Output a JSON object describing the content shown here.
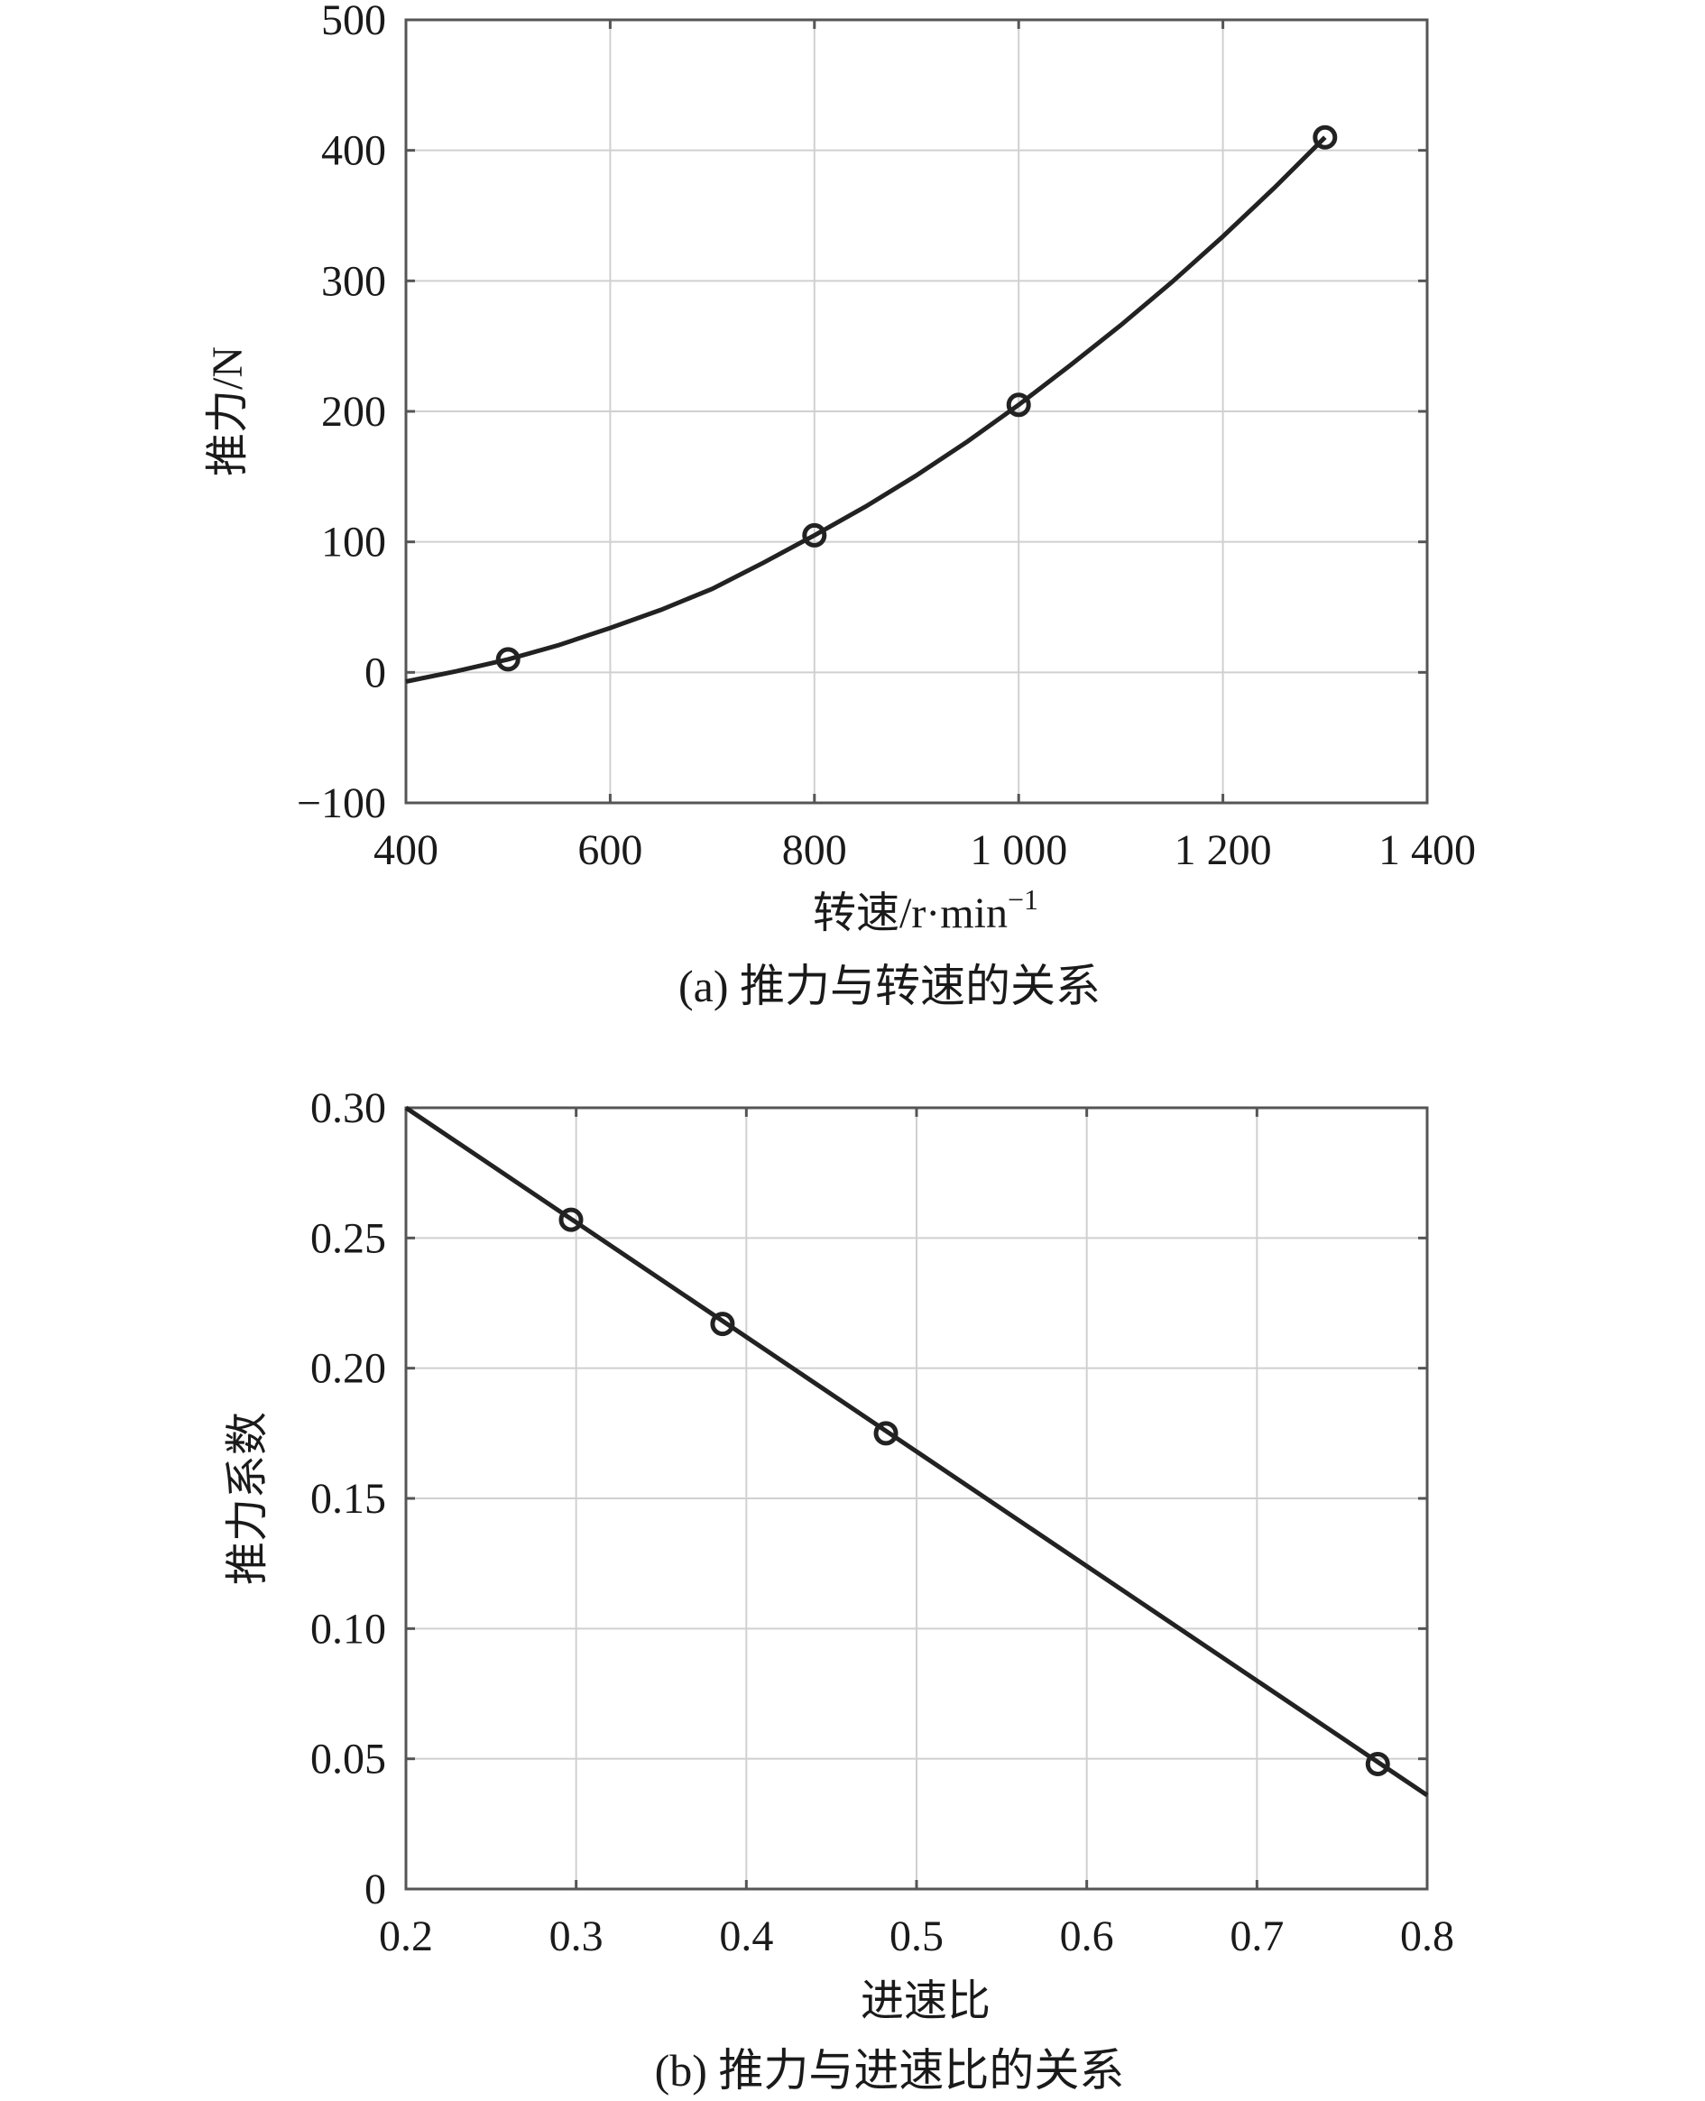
{
  "chart_data": [
    {
      "type": "line",
      "caption": "(a) 推力与转速的关系",
      "xlabel_main": "转速/r·min",
      "xlabel_sup": "−1",
      "ylabel": "推力/N",
      "xlim": [
        400,
        1400
      ],
      "ylim": [
        -100,
        500
      ],
      "xticks": [
        400,
        600,
        800,
        1000,
        1200,
        1400
      ],
      "xtick_labels": [
        "400",
        "600",
        "800",
        "1 000",
        "1 200",
        "1 400"
      ],
      "yticks": [
        -100,
        0,
        100,
        200,
        300,
        400,
        500
      ],
      "ytick_labels": [
        "−100",
        "0",
        "100",
        "200",
        "300",
        "400",
        "500"
      ],
      "grid": true,
      "points": {
        "x": [
          500,
          800,
          1000,
          1300
        ],
        "y": [
          10,
          105,
          205,
          410
        ]
      },
      "fit_curve": {
        "x": [
          400,
          450,
          500,
          550,
          600,
          650,
          700,
          750,
          800,
          850,
          900,
          950,
          1000,
          1050,
          1100,
          1150,
          1200,
          1250,
          1300
        ],
        "y": [
          -7,
          1,
          10,
          21,
          34,
          48,
          64,
          84,
          105,
          127,
          151,
          177,
          205,
          235,
          266,
          299,
          334,
          371,
          410
        ]
      }
    },
    {
      "type": "line",
      "caption": "(b) 推力与进速比的关系",
      "xlabel": "进速比",
      "ylabel": "推力系数",
      "xlim": [
        0.2,
        0.8
      ],
      "ylim": [
        0,
        0.3
      ],
      "xticks": [
        0.2,
        0.3,
        0.4,
        0.5,
        0.6,
        0.7,
        0.8
      ],
      "xtick_labels": [
        "0.2",
        "0.3",
        "0.4",
        "0.5",
        "0.6",
        "0.7",
        "0.8"
      ],
      "yticks": [
        0,
        0.05,
        0.1,
        0.15,
        0.2,
        0.25,
        0.3
      ],
      "ytick_labels": [
        "0",
        "0.05",
        "0.10",
        "0.15",
        "0.20",
        "0.25",
        "0.30"
      ],
      "grid": true,
      "points": {
        "x": [
          0.297,
          0.386,
          0.482,
          0.771
        ],
        "y": [
          0.257,
          0.217,
          0.175,
          0.048
        ]
      },
      "fit_curve": {
        "x": [
          0.2,
          0.8
        ],
        "y": [
          0.3,
          0.036
        ]
      }
    }
  ]
}
